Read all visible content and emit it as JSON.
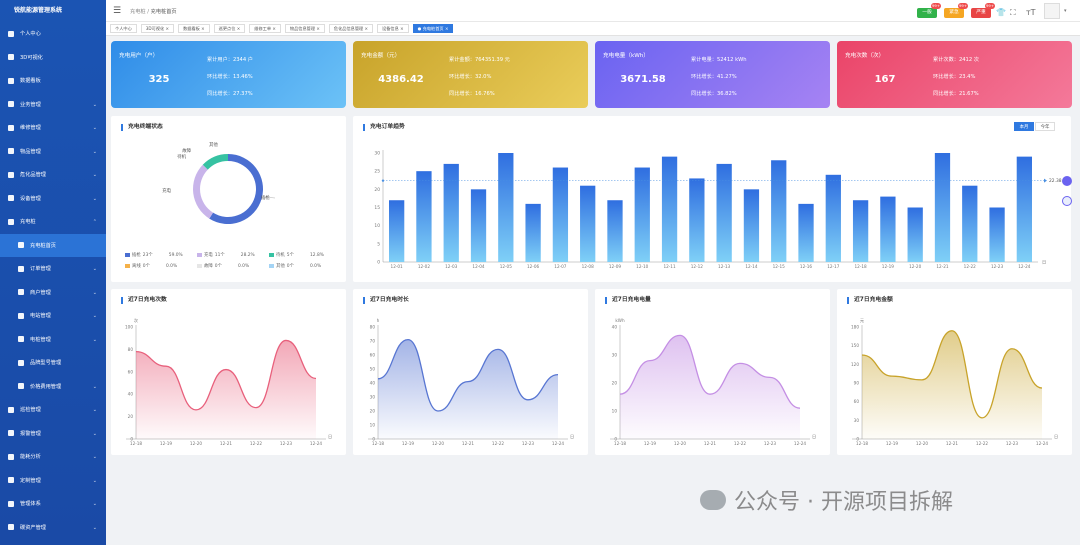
{
  "app": {
    "title": "锐航能源管理系统"
  },
  "sidebar": {
    "items": [
      {
        "label": "个人中心",
        "chevron": false,
        "sub": false
      },
      {
        "label": "3D可视化",
        "chevron": false,
        "sub": false
      },
      {
        "label": "数据看板",
        "chevron": false,
        "sub": false
      },
      {
        "label": "业务管理",
        "chevron": true,
        "sub": false
      },
      {
        "label": "维修管理",
        "chevron": true,
        "sub": false
      },
      {
        "label": "物品管理",
        "chevron": true,
        "sub": false
      },
      {
        "label": "危化品管理",
        "chevron": true,
        "sub": false
      },
      {
        "label": "设备管理",
        "chevron": true,
        "sub": false
      },
      {
        "label": "充电桩",
        "chevron": true,
        "sub": false,
        "open": true
      },
      {
        "label": "充电桩首页",
        "chevron": false,
        "sub": true,
        "active": true
      },
      {
        "label": "订单管理",
        "chevron": true,
        "sub": true
      },
      {
        "label": "商户管理",
        "chevron": true,
        "sub": true
      },
      {
        "label": "电站管理",
        "chevron": true,
        "sub": true
      },
      {
        "label": "电桩管理",
        "chevron": true,
        "sub": true
      },
      {
        "label": "品牌型号管理",
        "chevron": false,
        "sub": true
      },
      {
        "label": "价格费用管理",
        "chevron": true,
        "sub": true
      },
      {
        "label": "巡检管理",
        "chevron": true,
        "sub": false
      },
      {
        "label": "报警管理",
        "chevron": true,
        "sub": false
      },
      {
        "label": "能耗分析",
        "chevron": true,
        "sub": false
      },
      {
        "label": "定制管理",
        "chevron": true,
        "sub": false
      },
      {
        "label": "管理体系",
        "chevron": true,
        "sub": false
      },
      {
        "label": "碳资产管理",
        "chevron": true,
        "sub": false
      }
    ]
  },
  "topbar": {
    "breadcrumb": [
      "充电桩",
      "充电桩首页"
    ],
    "badges": [
      {
        "label": "一般",
        "count": "99+",
        "color": "#31b24a"
      },
      {
        "label": "紧急",
        "count": "99+",
        "color": "#f5a623"
      },
      {
        "label": "严重",
        "count": "99+",
        "color": "#e84545"
      }
    ]
  },
  "tags": [
    {
      "label": "个人中心",
      "active": false
    },
    {
      "label": "3D可视化",
      "active": false
    },
    {
      "label": "数据看板",
      "active": false
    },
    {
      "label": "巡更点位",
      "active": false
    },
    {
      "label": "维修工单",
      "active": false
    },
    {
      "label": "物品信息管理",
      "active": false
    },
    {
      "label": "危化品信息管理",
      "active": false
    },
    {
      "label": "设备信息",
      "active": false
    },
    {
      "label": "充电桩首页",
      "active": true
    }
  ],
  "stats": [
    {
      "title": "充电用户（户）",
      "value": "325",
      "rows": [
        "累计用户：2344 户",
        "环比增长：13.46%",
        "同比增长：27.37%"
      ],
      "grad": [
        "#2f8ce8",
        "#6cc2f7"
      ]
    },
    {
      "title": "充电金额（元）",
      "value": "4386.42",
      "rows": [
        "累计金额：764351.39 元",
        "环比增长：32.0%",
        "同比增长：16.76%"
      ],
      "grad": [
        "#c8a32a",
        "#eacd5a"
      ]
    },
    {
      "title": "充电电量（kWh）",
      "value": "3671.58",
      "rows": [
        "累计电量：52412 kWh",
        "环比增长：41.27%",
        "同比增长：36.82%"
      ],
      "grad": [
        "#6a63f1",
        "#a683f3"
      ]
    },
    {
      "title": "充电次数（次）",
      "value": "167",
      "rows": [
        "累计次数：2412 次",
        "环比增长：23.4%",
        "同比增长：21.67%"
      ],
      "grad": [
        "#ea4468",
        "#f4799a"
      ]
    }
  ],
  "terminal": {
    "title": "充电终端状态",
    "slices": [
      {
        "name": "插枪",
        "count": "23个",
        "pct": "59.0%",
        "value": 23,
        "color": "#4a6ed1"
      },
      {
        "name": "充电",
        "count": "11个",
        "pct": "28.2%",
        "value": 11,
        "color": "#c8b4ea"
      },
      {
        "name": "待机",
        "count": "5个",
        "pct": "12.8%",
        "value": 5,
        "color": "#36c2a2"
      },
      {
        "name": "离线",
        "count": "0个",
        "pct": "0.0%",
        "value": 0,
        "color": "#f5b14a"
      },
      {
        "name": "故障",
        "count": "0个",
        "pct": "0.0%",
        "value": 0,
        "color": "#e6e6e6"
      },
      {
        "name": "其他",
        "count": "0个",
        "pct": "0.0%",
        "value": 0,
        "color": "#a4d4f5"
      }
    ],
    "donut_labels": [
      "插枪",
      "充电",
      "待机",
      "故障",
      "其他"
    ]
  },
  "trend": {
    "title": "充电订单趋势",
    "toggles": [
      {
        "label": "本月",
        "on": true
      },
      {
        "label": "今年",
        "on": false
      }
    ]
  },
  "mini": [
    {
      "title": "近7日充电次数",
      "unit": "次"
    },
    {
      "title": "近7日充电时长",
      "unit": "h"
    },
    {
      "title": "近7日充电电量",
      "unit": "kWh"
    },
    {
      "title": "近7日充电金额",
      "unit": "元"
    }
  ],
  "watermark": "公众号 · 开源项目拆解",
  "chart_data": [
    {
      "type": "bar",
      "title": "充电订单趋势",
      "categories": [
        "12-01",
        "12-02",
        "12-03",
        "12-04",
        "12-05",
        "12-06",
        "12-07",
        "12-08",
        "12-09",
        "12-10",
        "12-11",
        "12-12",
        "12-13",
        "12-14",
        "12-15",
        "12-16",
        "12-17",
        "12-18",
        "12-19",
        "12-20",
        "12-21",
        "12-22",
        "12-23",
        "12-24"
      ],
      "values": [
        17,
        25,
        27,
        20,
        30,
        16,
        26,
        21,
        17,
        26,
        29,
        23,
        27,
        20,
        28,
        16,
        24,
        17,
        18,
        15,
        30,
        21,
        15,
        29
      ],
      "ylim": [
        0,
        30
      ],
      "yticks": [
        0,
        5,
        10,
        15,
        20,
        25,
        30
      ],
      "xunit": "日",
      "average": 22.38,
      "average_label": "22.38"
    },
    {
      "type": "area",
      "title": "近7日充电次数",
      "categories": [
        "12-18",
        "12-19",
        "12-20",
        "12-21",
        "12-22",
        "12-23",
        "12-24"
      ],
      "values": [
        78,
        65,
        26,
        62,
        28,
        88,
        54
      ],
      "ylim": [
        0,
        100
      ],
      "yticks": [
        0,
        20,
        40,
        60,
        80,
        100
      ],
      "ylabel": "次",
      "xunit": "日",
      "color": "#e8607c"
    },
    {
      "type": "area",
      "title": "近7日充电时长",
      "categories": [
        "12-18",
        "12-19",
        "12-20",
        "12-21",
        "12-22",
        "12-23",
        "12-24"
      ],
      "values": [
        43,
        71,
        20,
        41,
        64,
        28,
        46
      ],
      "ylim": [
        0,
        80
      ],
      "yticks": [
        0,
        10,
        20,
        30,
        40,
        50,
        60,
        70,
        80
      ],
      "ylabel": "h",
      "xunit": "日",
      "color": "#5876d2"
    },
    {
      "type": "area",
      "title": "近7日充电电量",
      "categories": [
        "12-18",
        "12-19",
        "12-20",
        "12-21",
        "12-22",
        "12-23",
        "12-24"
      ],
      "values": [
        16,
        28,
        37,
        16,
        27,
        22,
        11
      ],
      "ylim": [
        0,
        40
      ],
      "yticks": [
        0,
        10,
        20,
        30,
        40
      ],
      "ylabel": "kWh",
      "xunit": "日",
      "color": "#c48fe4"
    },
    {
      "type": "area",
      "title": "近7日充电金额",
      "categories": [
        "12-18",
        "12-19",
        "12-20",
        "12-21",
        "12-22",
        "12-23",
        "12-24"
      ],
      "values": [
        135,
        101,
        95,
        174,
        34,
        145,
        82
      ],
      "ylim": [
        0,
        180
      ],
      "yticks": [
        0,
        30,
        60,
        90,
        120,
        150,
        180
      ],
      "ylabel": "元",
      "xunit": "日",
      "color": "#c8a32a"
    }
  ]
}
